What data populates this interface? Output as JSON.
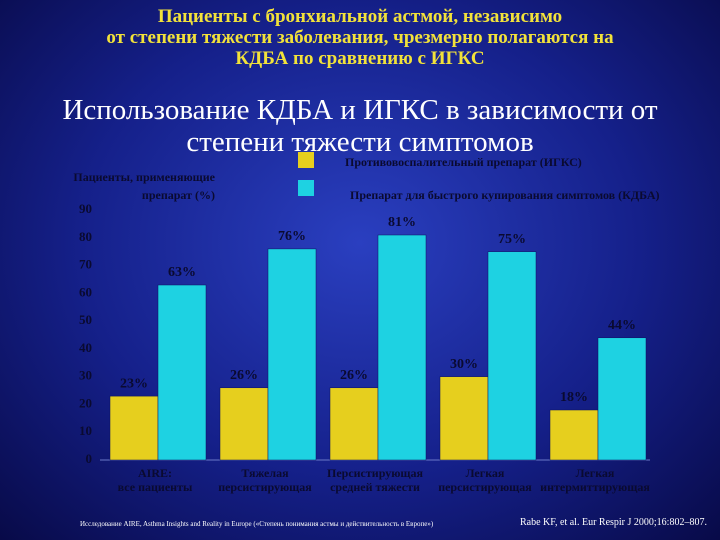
{
  "chart_data": {
    "type": "bar",
    "title": "Пациенты с бронхиальной астмой, независимо\nот степени тяжести заболевания, чрезмерно полагаются на\nКДБА по сравнению с ИГКС",
    "subtitle": "Использование КДБА и ИГКС в зависимости от\nстепени тяжести симптомов",
    "y_label": "Пациенты, применяющие\nпрепарат (%)",
    "categories": [
      "AIRE:\nвсе пациенты",
      "Тяжелая\nперсистирующая",
      "Персистирующая\nсредней тяжести",
      "Легкая\nперсистирующая",
      "Легкая\nинтермиттирующая"
    ],
    "series": [
      {
        "name": "Противовоспалительный препарат (ИГКС)",
        "color": "#e6cf1e",
        "values": [
          23,
          26,
          26,
          30,
          18
        ],
        "value_labels": [
          "23%",
          "26%",
          "26%",
          "30%",
          "18%"
        ]
      },
      {
        "name": "Препарат для быстрого купирования симптомов (КДБА)",
        "color": "#1ed2e2",
        "values": [
          63,
          76,
          81,
          75,
          44
        ],
        "value_labels": [
          "63%",
          "76%",
          "81%",
          "75%",
          "44%"
        ]
      }
    ],
    "ylim": [
      0,
      90
    ],
    "yticks": [
      0,
      10,
      20,
      30,
      40,
      50,
      60,
      70,
      80,
      90
    ],
    "grid": false,
    "footnote": "Исследование AIRE, Asthma Insights and Reality in Europe («Степень понимания астмы и действительность в Европе»)",
    "source": "Rabe KF, et al. Eur Respir J 2000;16:802–807."
  }
}
